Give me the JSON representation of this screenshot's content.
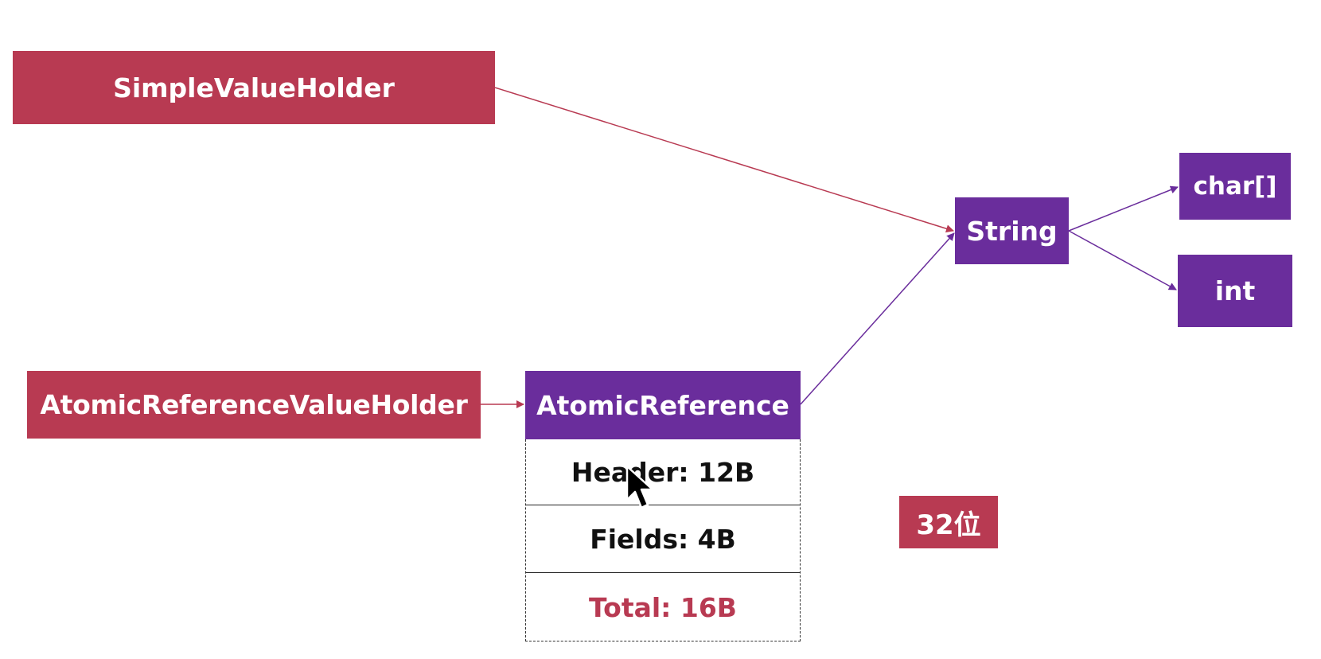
{
  "nodes": {
    "simple_value_holder": "SimpleValueHolder",
    "atomic_reference_value_holder": "AtomicReferenceValueHolder",
    "atomic_reference": "AtomicReference",
    "string": "String",
    "char_array": "char[]",
    "int": "int"
  },
  "memory_layout": {
    "header": "Header: 12B",
    "fields": "Fields: 4B",
    "total": "Total: 16B"
  },
  "badge": "32位",
  "colors": {
    "class_red": "#b83a52",
    "class_purple": "#6a2d9c",
    "total_text": "#b83a52"
  },
  "edges": [
    {
      "from": "simple_value_holder",
      "to": "string"
    },
    {
      "from": "atomic_reference_value_holder",
      "to": "atomic_reference"
    },
    {
      "from": "atomic_reference",
      "to": "string"
    },
    {
      "from": "string",
      "to": "char_array"
    },
    {
      "from": "string",
      "to": "int"
    }
  ]
}
